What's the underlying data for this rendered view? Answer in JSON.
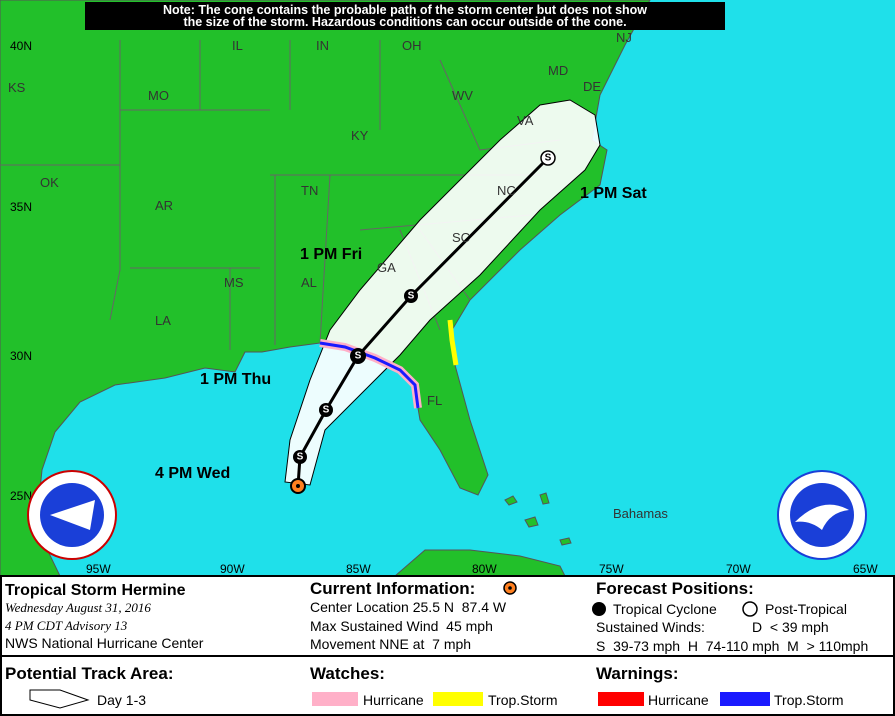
{
  "note": {
    "lines": [
      "Note: The cone contains the probable path of the storm center but does not show",
      "the size of the storm. Hazardous conditions can occur outside of the cone."
    ]
  },
  "map": {
    "places": [
      "KS",
      "MO",
      "IL",
      "IN",
      "OH",
      "NJ",
      "MD",
      "DE",
      "WV",
      "VA",
      "KY",
      "OK",
      "AR",
      "TN",
      "NC",
      "SC",
      "GA",
      "AL",
      "MS",
      "LA",
      "FL",
      "Bahamas"
    ],
    "lat_labels": [
      "40N",
      "35N",
      "30N",
      "25N"
    ],
    "lon_labels": [
      "95W",
      "90W",
      "85W",
      "80W",
      "75W",
      "70W",
      "65W"
    ]
  },
  "track": {
    "points": [
      {
        "label": "S"
      },
      {
        "label": "S"
      },
      {
        "label": "S"
      },
      {
        "label": "S"
      },
      {
        "label": "S"
      }
    ],
    "time_labels": [
      "4 PM Wed",
      "1 PM Thu",
      "1 PM Fri",
      "1 PM Sat"
    ]
  },
  "storm_info": {
    "name": "Tropical Storm Hermine",
    "date": "Wednesday August 31, 2016",
    "advisory": "4 PM CDT Advisory 13",
    "center": "NWS National Hurricane Center"
  },
  "current_info": {
    "heading": "Current Information:",
    "lines": [
      "Center Location 25.5 N  87.4 W",
      "Max Sustained Wind  45 mph",
      "Movement NNE at  7 mph"
    ]
  },
  "forecast_positions": {
    "heading": "Forecast Positions:",
    "tropical": "Tropical Cyclone",
    "post_tropical": "Post-Tropical",
    "winds_label": "Sustained Winds:",
    "winds_d": "D  < 39 mph",
    "winds_scale": "S  39-73 mph  H  74-110 mph  M  > 110mph"
  },
  "potential_track": {
    "heading": "Potential Track Area:",
    "day": "Day 1-3"
  },
  "watches": {
    "heading": "Watches:",
    "hurricane": "Hurricane",
    "trop_storm": "Trop.Storm"
  },
  "warnings": {
    "heading": "Warnings:",
    "hurricane": "Hurricane",
    "trop_storm": "Trop.Storm"
  }
}
